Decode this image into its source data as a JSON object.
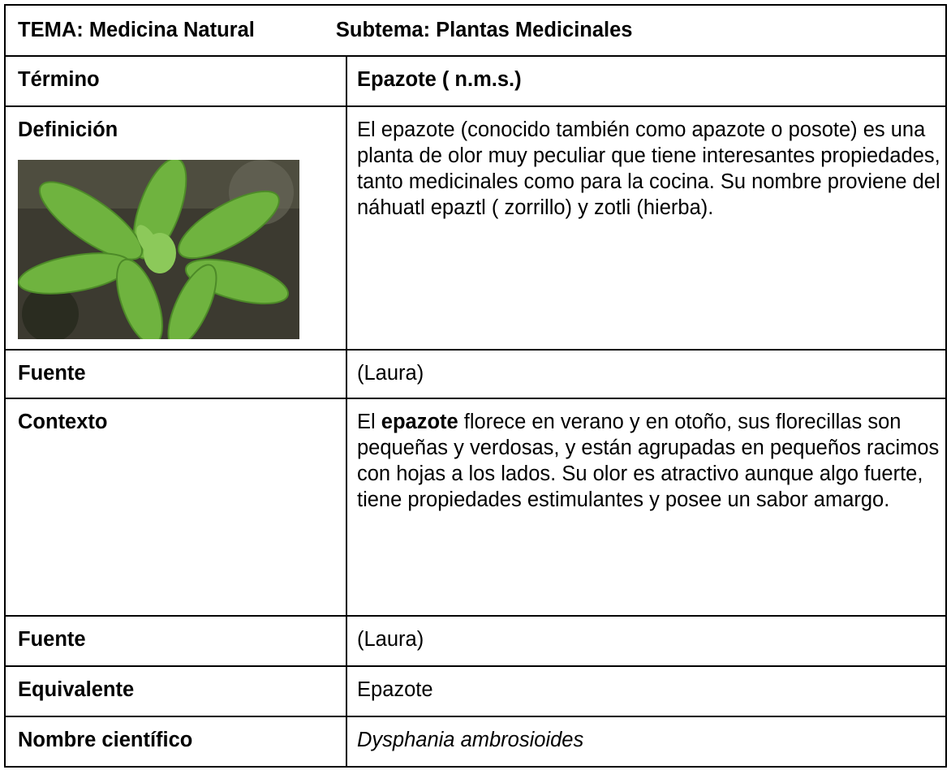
{
  "header": {
    "tema": "TEMA: Medicina Natural",
    "subtema": "Subtema: Plantas Medicinales"
  },
  "rows": [
    {
      "label": "Término",
      "content": "Epazote ( n.m.s.)"
    },
    {
      "label": "Definición",
      "content": "El epazote (conocido también como apazote o posote) es una planta de olor muy peculiar que tiene interesantes propiedades, tanto medicinales como para la cocina. Su nombre proviene del náhuatl epaztl ( zorrillo) y zotli (hierba)."
    },
    {
      "label": "Fuente",
      "content": "(Laura)"
    },
    {
      "label": "Contexto",
      "content": [
        "El ",
        "epazote",
        " florece en verano y en otoño, sus florecillas son pequeñas y verdosas, y están agrupadas en pequeños racimos con hojas a los lados. Su olor es atractivo aunque algo fuerte, tiene propiedades estimulantes y posee un sabor amargo."
      ]
    },
    {
      "label": "Fuente",
      "content": "(Laura)"
    },
    {
      "label": "Equivalente",
      "content": "Epazote"
    },
    {
      "label": "Nombre científico",
      "content": "Dysphania ambrosioides"
    }
  ]
}
